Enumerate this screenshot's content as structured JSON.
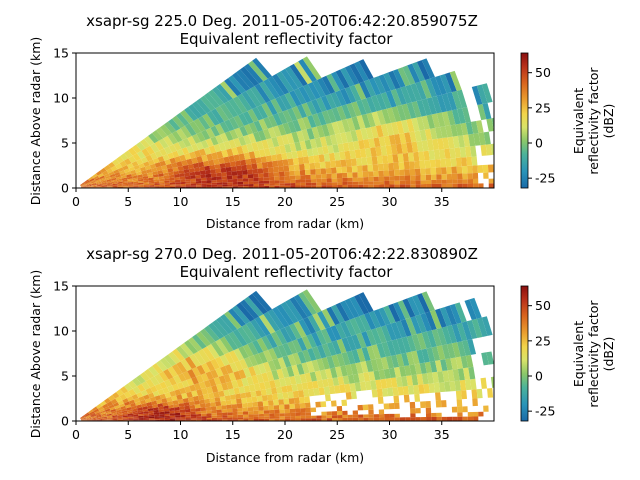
{
  "chart_data": [
    {
      "type": "heatmap",
      "title": "xsapr-sg 225.0 Deg. 2011-05-20T06:42:20.859075Z",
      "subtitle": "Equivalent reflectivity factor",
      "xlabel": "Distance from radar (km)",
      "ylabel": "Distance Above radar  (km)",
      "xlim": [
        0,
        40
      ],
      "ylim": [
        0,
        15
      ],
      "xticks": [
        "0",
        "5",
        "10",
        "15",
        "20",
        "25",
        "30",
        "35"
      ],
      "yticks": [
        "0",
        "5",
        "10",
        "15"
      ],
      "colorbar": {
        "label_lines": [
          "Equivalent",
          "reflectivity factor",
          "(dBZ)"
        ],
        "range": [
          -32,
          64
        ],
        "ticks": [
          "-25",
          "0",
          "25",
          "50"
        ]
      }
    },
    {
      "type": "heatmap",
      "title": "xsapr-sg 270.0 Deg. 2011-05-20T06:42:22.830890Z",
      "subtitle": "Equivalent reflectivity factor",
      "xlabel": "Distance from radar (km)",
      "ylabel": "Distance Above radar  (km)",
      "xlim": [
        0,
        40
      ],
      "ylim": [
        0,
        15
      ],
      "xticks": [
        "0",
        "5",
        "10",
        "15",
        "20",
        "25",
        "30",
        "35"
      ],
      "yticks": [
        "0",
        "5",
        "10",
        "15"
      ],
      "colorbar": {
        "label_lines": [
          "Equivalent",
          "reflectivity factor",
          "(dBZ)"
        ],
        "range": [
          -32,
          64
        ],
        "ticks": [
          "-25",
          "0",
          "25",
          "50"
        ]
      }
    }
  ]
}
